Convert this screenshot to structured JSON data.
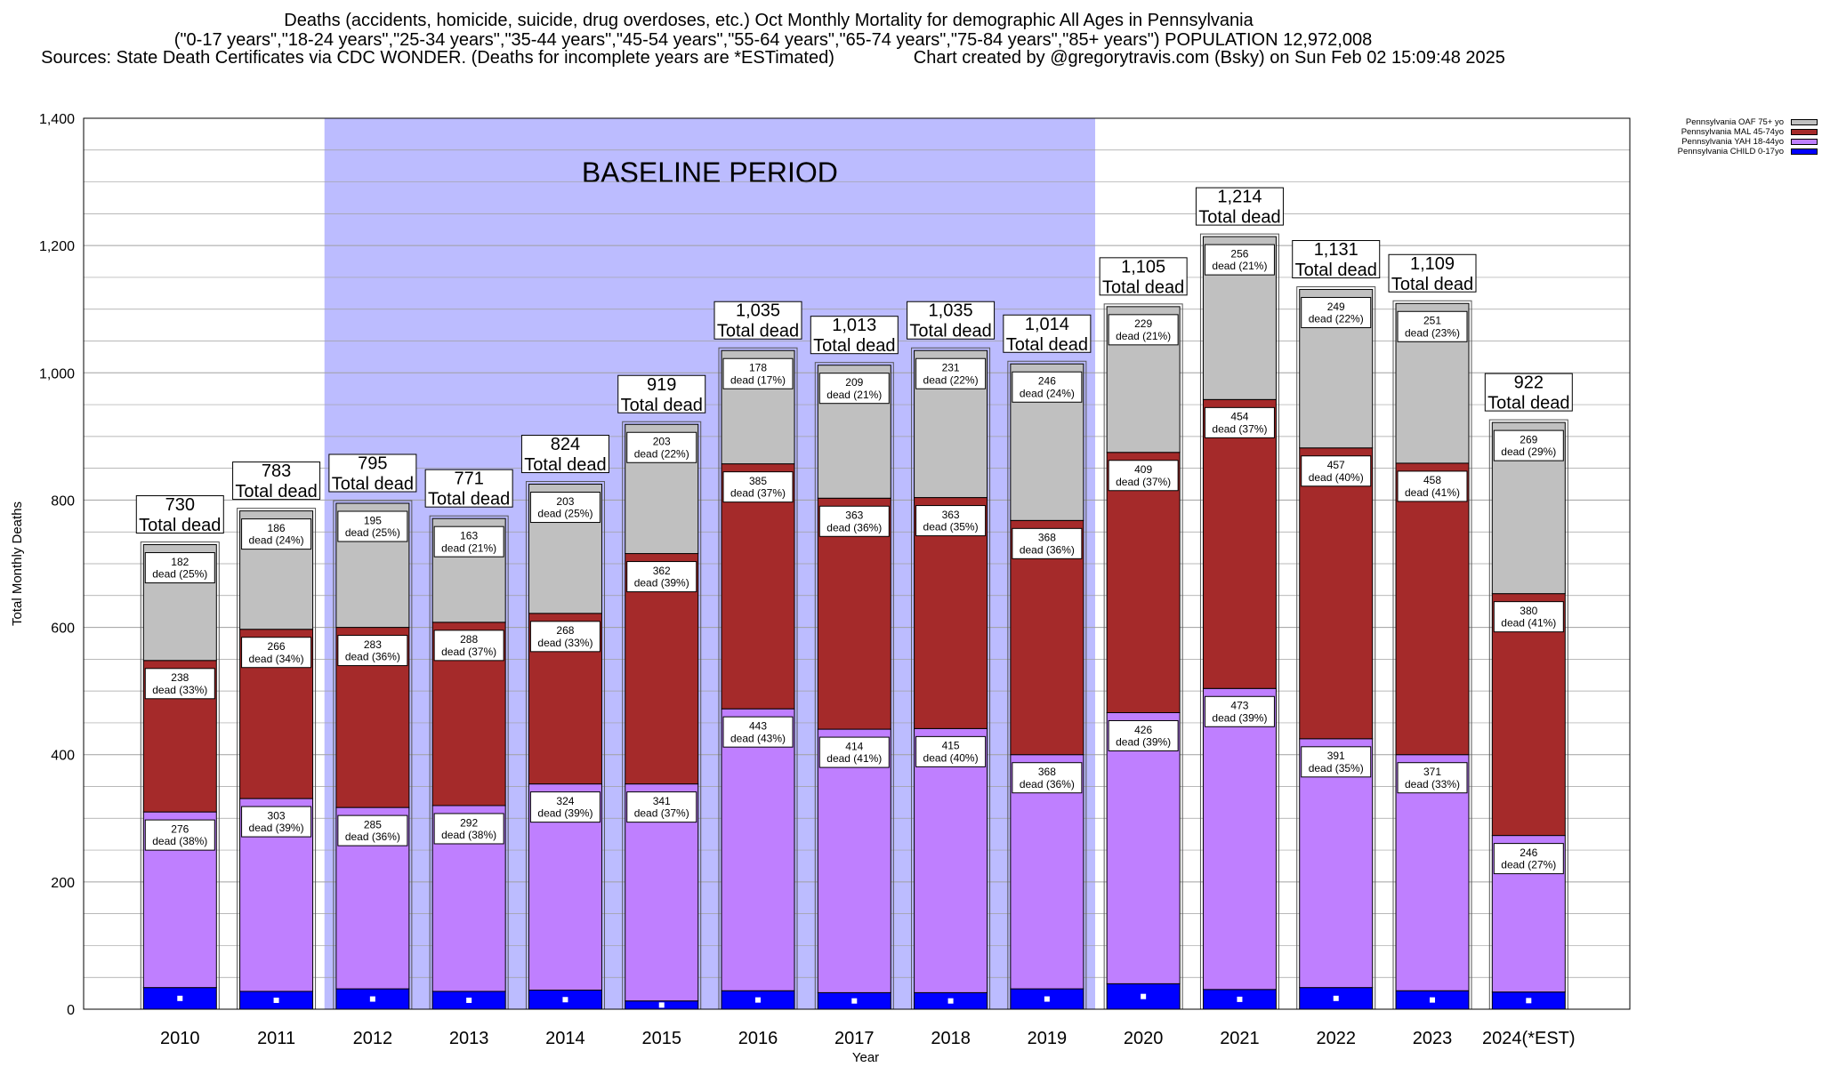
{
  "title_lines": [
    "Deaths (accidents, homicide, suicide, drug overdoses, etc.) Oct Monthly Mortality for demographic All Ages in Pennsylvania",
    "(\"0-17 years\",\"18-24 years\",\"25-34 years\",\"35-44 years\",\"45-54 years\",\"55-64 years\",\"65-74 years\",\"75-84 years\",\"85+ years\") POPULATION 12,972,008",
    "Sources: State Death Certificates via CDC WONDER. (Deaths for incomplete years are *ESTimated)                Chart created by @gregorytravis.com (Bsky) on Sun Feb 02 15:09:48 2025"
  ],
  "chart_data": {
    "type": "bar",
    "stacked": true,
    "title": "Deaths (accidents, homicide, suicide, drug overdoses, etc.) Oct Monthly Mortality for demographic All Ages in Pennsylvania",
    "xlabel": "Year",
    "ylabel": "Total Monthly Deaths",
    "ylim": [
      0,
      1400
    ],
    "yticks": [
      0,
      200,
      400,
      600,
      800,
      1000,
      1200,
      1400
    ],
    "grid": true,
    "legend_position": "top-right",
    "baseline_label": "BASELINE PERIOD",
    "baseline_range": [
      "2012",
      "2019"
    ],
    "categories": [
      "2010",
      "2011",
      "2012",
      "2013",
      "2014",
      "2015",
      "2016",
      "2017",
      "2018",
      "2019",
      "2020",
      "2021",
      "2022",
      "2023",
      "2024(*EST)"
    ],
    "series": [
      {
        "name": "Pennsylvania CHILD 0-17yo",
        "color": "#0000ff",
        "values": [
          34,
          28,
          32,
          28,
          30,
          13,
          29,
          26,
          26,
          32,
          40,
          31,
          34,
          29,
          27
        ]
      },
      {
        "name": "Pennsylvania YAH 18-44yo",
        "color": "#bf7fff",
        "values": [
          276,
          303,
          285,
          292,
          324,
          341,
          443,
          414,
          415,
          368,
          426,
          473,
          391,
          371,
          246
        ],
        "pct": [
          38,
          39,
          36,
          38,
          39,
          37,
          43,
          41,
          40,
          36,
          39,
          39,
          35,
          33,
          27
        ]
      },
      {
        "name": "Pennsylvania MAL 45-74yo",
        "color": "#a52a2a",
        "values": [
          238,
          266,
          283,
          288,
          268,
          362,
          385,
          363,
          363,
          368,
          409,
          454,
          457,
          458,
          380
        ],
        "pct": [
          33,
          34,
          36,
          37,
          33,
          39,
          37,
          36,
          35,
          36,
          37,
          37,
          40,
          41,
          41
        ]
      },
      {
        "name": "Pennsylvania OAF 75+ yo",
        "color": "#c0c0c0",
        "values": [
          182,
          186,
          195,
          163,
          203,
          203,
          178,
          209,
          231,
          246,
          229,
          256,
          249,
          251,
          269
        ],
        "pct": [
          25,
          24,
          25,
          21,
          25,
          22,
          17,
          21,
          22,
          24,
          21,
          21,
          22,
          23,
          29
        ]
      }
    ],
    "totals": [
      "730",
      "783",
      "795",
      "771",
      "824",
      "919",
      "1,035",
      "1,013",
      "1,035",
      "1,014",
      "1,105",
      "1,214",
      "1,131",
      "1,109",
      "922"
    ],
    "total_label": "Total dead",
    "dead_label": "dead"
  },
  "colors": {
    "baseline_band": "#bcbcff",
    "grid": "#a0a0a0",
    "plot_border": "#000000"
  }
}
